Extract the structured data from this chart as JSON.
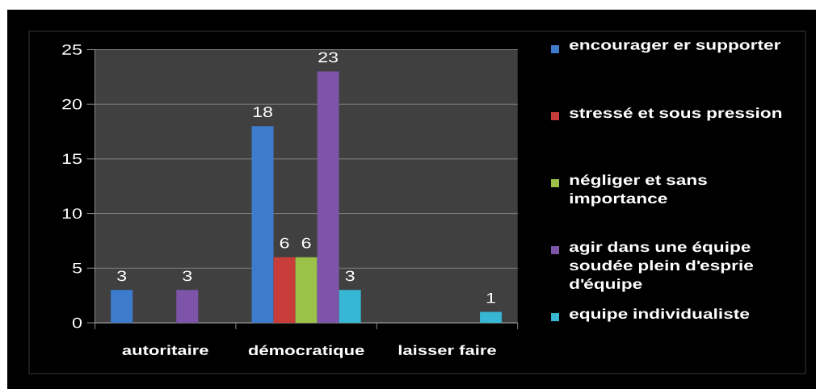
{
  "chart_data": {
    "type": "bar",
    "categories": [
      "autoritaire",
      "démocratique",
      "laisser faire"
    ],
    "series": [
      {
        "name": "encourager er supporter",
        "color": "#3d7ccc",
        "values": [
          3,
          18,
          null
        ]
      },
      {
        "name": "stressé et sous pression",
        "color": "#c83c3a",
        "values": [
          null,
          6,
          null
        ]
      },
      {
        "name": "négliger et sans importance",
        "color": "#9dc24a",
        "values": [
          null,
          6,
          null
        ]
      },
      {
        "name": "agir dans une équipe soudée plein d'esprie d'équipe",
        "color": "#7d54a8",
        "values": [
          3,
          23,
          null
        ]
      },
      {
        "name": "equipe individualiste",
        "color": "#38b6d6",
        "values": [
          null,
          3,
          1
        ]
      }
    ],
    "ylim": [
      0,
      25
    ],
    "yticks": [
      0,
      5,
      10,
      15,
      20,
      25
    ],
    "grid": "y",
    "legend": "right",
    "data_labels": true
  }
}
